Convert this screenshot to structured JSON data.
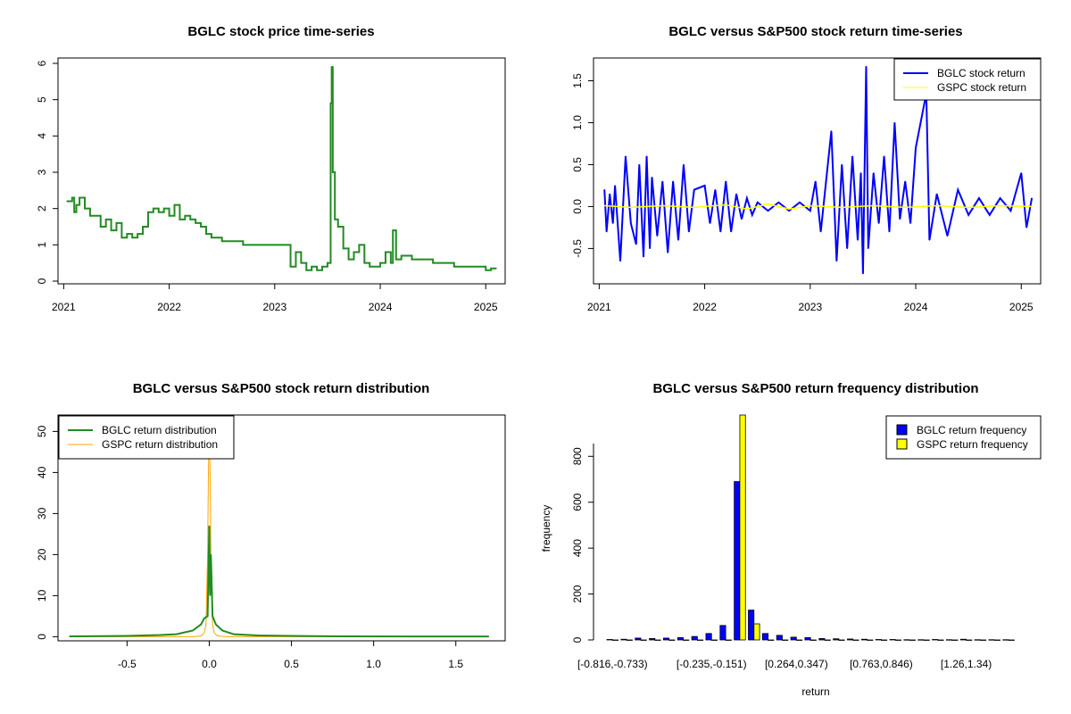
{
  "chart_data": [
    {
      "type": "line",
      "title": "BGLC stock price time-series",
      "xlabel": "",
      "ylabel": "",
      "xticks": [
        "2021",
        "2022",
        "2023",
        "2024",
        "2025"
      ],
      "xtick_values": [
        2021,
        2022,
        2023,
        2024,
        2025
      ],
      "xlim": [
        2020.98,
        2025.15
      ],
      "yticks": [
        0,
        1,
        2,
        3,
        4,
        5,
        6
      ],
      "ylim": [
        0,
        6
      ],
      "series": [
        {
          "name": "BGLC price",
          "color": "#228B22",
          "x": [
            2021.03,
            2021.08,
            2021.1,
            2021.12,
            2021.15,
            2021.2,
            2021.25,
            2021.3,
            2021.35,
            2021.4,
            2021.45,
            2021.5,
            2021.55,
            2021.6,
            2021.65,
            2021.7,
            2021.75,
            2021.8,
            2021.85,
            2021.9,
            2021.95,
            2022.0,
            2022.05,
            2022.1,
            2022.15,
            2022.2,
            2022.25,
            2022.3,
            2022.35,
            2022.4,
            2022.45,
            2022.5,
            2022.6,
            2022.7,
            2022.8,
            2022.9,
            2023.0,
            2023.1,
            2023.15,
            2023.2,
            2023.25,
            2023.3,
            2023.35,
            2023.4,
            2023.45,
            2023.5,
            2023.53,
            2023.54,
            2023.55,
            2023.57,
            2023.6,
            2023.65,
            2023.7,
            2023.75,
            2023.8,
            2023.85,
            2023.9,
            2024.0,
            2024.05,
            2024.1,
            2024.12,
            2024.15,
            2024.2,
            2024.3,
            2024.4,
            2024.5,
            2024.6,
            2024.7,
            2024.8,
            2024.9,
            2025.0,
            2025.05,
            2025.1
          ],
          "values": [
            2.2,
            2.3,
            1.9,
            2.1,
            2.3,
            2.0,
            1.8,
            1.8,
            1.5,
            1.7,
            1.4,
            1.6,
            1.2,
            1.3,
            1.2,
            1.3,
            1.5,
            1.9,
            2.0,
            1.9,
            2.0,
            1.8,
            2.1,
            1.7,
            1.8,
            1.7,
            1.6,
            1.5,
            1.3,
            1.2,
            1.2,
            1.1,
            1.1,
            1.0,
            1.0,
            1.0,
            1.0,
            1.0,
            0.4,
            0.8,
            0.5,
            0.3,
            0.4,
            0.3,
            0.4,
            0.5,
            4.9,
            5.9,
            3.0,
            1.7,
            1.5,
            0.9,
            0.6,
            0.8,
            1.0,
            0.5,
            0.4,
            0.5,
            0.8,
            0.5,
            1.4,
            0.6,
            0.7,
            0.6,
            0.6,
            0.5,
            0.5,
            0.4,
            0.4,
            0.4,
            0.3,
            0.35,
            0.35
          ]
        }
      ]
    },
    {
      "type": "line",
      "title": "BGLC versus S&P500 stock return time-series",
      "xlabel": "",
      "ylabel": "",
      "xticks": [
        "2021",
        "2022",
        "2023",
        "2024",
        "2025"
      ],
      "xtick_values": [
        2021,
        2022,
        2023,
        2024,
        2025
      ],
      "xlim": [
        2020.98,
        2025.15
      ],
      "yticks": [
        "-0.5",
        "0.0",
        "0.5",
        "1.0",
        "1.5"
      ],
      "ytick_values": [
        -0.5,
        0.0,
        0.5,
        1.0,
        1.5
      ],
      "ylim": [
        -0.9,
        1.75
      ],
      "legend": {
        "placement": "top-right",
        "entries": [
          "BGLC stock return",
          "GSPC stock return"
        ]
      },
      "series": [
        {
          "name": "BGLC stock return",
          "color": "#0000FF",
          "x": [
            2021.05,
            2021.07,
            2021.1,
            2021.13,
            2021.15,
            2021.2,
            2021.25,
            2021.3,
            2021.35,
            2021.38,
            2021.42,
            2021.45,
            2021.48,
            2021.5,
            2021.55,
            2021.6,
            2021.65,
            2021.7,
            2021.75,
            2021.8,
            2021.85,
            2021.9,
            2022.0,
            2022.05,
            2022.1,
            2022.15,
            2022.2,
            2022.25,
            2022.3,
            2022.35,
            2022.4,
            2022.45,
            2022.5,
            2022.6,
            2022.7,
            2022.8,
            2022.9,
            2023.0,
            2023.05,
            2023.1,
            2023.2,
            2023.25,
            2023.3,
            2023.35,
            2023.4,
            2023.45,
            2023.48,
            2023.5,
            2023.53,
            2023.55,
            2023.6,
            2023.65,
            2023.7,
            2023.75,
            2023.8,
            2023.85,
            2023.9,
            2023.95,
            2024.0,
            2024.1,
            2024.13,
            2024.2,
            2024.3,
            2024.4,
            2024.5,
            2024.6,
            2024.7,
            2024.8,
            2024.9,
            2025.0,
            2025.05,
            2025.1
          ],
          "values": [
            0.2,
            -0.3,
            0.15,
            -0.2,
            0.25,
            -0.65,
            0.6,
            -0.2,
            -0.45,
            0.5,
            -0.6,
            0.6,
            -0.5,
            0.35,
            -0.35,
            0.3,
            -0.55,
            0.3,
            -0.4,
            0.5,
            -0.3,
            0.2,
            0.25,
            -0.2,
            0.2,
            -0.3,
            0.3,
            -0.3,
            0.15,
            -0.15,
            0.1,
            -0.1,
            0.05,
            -0.05,
            0.05,
            -0.05,
            0.05,
            -0.05,
            0.3,
            -0.3,
            0.9,
            -0.65,
            0.5,
            -0.5,
            0.6,
            -0.4,
            0.4,
            -0.8,
            1.67,
            -0.5,
            0.4,
            -0.2,
            0.6,
            -0.3,
            1.0,
            -0.15,
            0.3,
            -0.2,
            0.7,
            1.35,
            -0.4,
            0.15,
            -0.35,
            0.2,
            -0.1,
            0.1,
            -0.1,
            0.1,
            -0.05,
            0.4,
            -0.25,
            0.1
          ]
        },
        {
          "name": "GSPC stock return",
          "color": "#FFFF00",
          "x": [
            2021.05,
            2021.3,
            2021.6,
            2021.9,
            2022.2,
            2022.4,
            2022.6,
            2022.8,
            2023.0,
            2023.3,
            2023.6,
            2023.9,
            2024.2,
            2024.5,
            2024.8,
            2025.1
          ],
          "values": [
            0.01,
            -0.01,
            0.01,
            -0.01,
            0.02,
            -0.03,
            0.03,
            -0.03,
            0.01,
            -0.01,
            0.01,
            -0.01,
            0.01,
            -0.01,
            0.01,
            0.0
          ]
        }
      ]
    },
    {
      "type": "line",
      "title": "BGLC versus S&P500 stock return distribution",
      "xlabel": "",
      "ylabel": "",
      "xticks": [
        "-0.5",
        "0.0",
        "0.5",
        "1.0",
        "1.5"
      ],
      "xtick_values": [
        -0.5,
        0.0,
        0.5,
        1.0,
        1.5
      ],
      "xlim": [
        -0.92,
        1.8
      ],
      "yticks": [
        "0",
        "10",
        "20",
        "30",
        "40",
        "50"
      ],
      "ytick_values": [
        0,
        10,
        20,
        30,
        40,
        50
      ],
      "ylim": [
        -1,
        54
      ],
      "legend": {
        "placement": "top-left",
        "entries": [
          "BGLC return distribution",
          "GSPC return distribution"
        ]
      },
      "series": [
        {
          "name": "BGLC return distribution",
          "color": "#228B22",
          "x": [
            -0.85,
            -0.5,
            -0.3,
            -0.2,
            -0.1,
            -0.05,
            -0.03,
            -0.01,
            0.0,
            0.005,
            0.01,
            0.02,
            0.04,
            0.08,
            0.15,
            0.3,
            0.5,
            0.8,
            1.2,
            1.7
          ],
          "values": [
            0.1,
            0.2,
            0.4,
            0.6,
            1.5,
            3.0,
            4.5,
            5.0,
            27.0,
            10.0,
            20.0,
            5.0,
            3.0,
            1.5,
            0.6,
            0.3,
            0.2,
            0.1,
            0.05,
            0.05
          ]
        },
        {
          "name": "GSPC return distribution",
          "color": "#FFA500",
          "x": [
            -0.85,
            -0.1,
            -0.05,
            -0.03,
            -0.02,
            -0.01,
            -0.005,
            0.0,
            0.005,
            0.01,
            0.02,
            0.03,
            0.05,
            0.1,
            1.7
          ],
          "values": [
            0.0,
            0.0,
            0.2,
            1.0,
            3.0,
            20.0,
            40.0,
            53.0,
            40.0,
            20.0,
            3.0,
            1.0,
            0.2,
            0.0,
            0.0
          ]
        }
      ]
    },
    {
      "type": "bar",
      "title": "BGLC versus S&P500 return frequency distribution",
      "xlabel": "return",
      "ylabel": "frequency",
      "xtick_labels": [
        "[-0.816,-0.733)",
        "[-0.235,-0.151)",
        "[0.264,0.347)",
        "[0.763,0.846)",
        "[1.26,1.34)"
      ],
      "xtick_bins": [
        0,
        7,
        13,
        19,
        25
      ],
      "yticks": [
        "0",
        "200",
        "400",
        "600",
        "800"
      ],
      "ytick_values": [
        0,
        200,
        400,
        600,
        800
      ],
      "ylim": [
        0,
        980
      ],
      "legend": {
        "placement": "top-right",
        "entries": [
          "BGLC return frequency",
          "GSPC return frequency"
        ]
      },
      "series": [
        {
          "name": "BGLC return frequency",
          "color": "#0000FF",
          "values": [
            2,
            3,
            8,
            6,
            8,
            10,
            15,
            28,
            63,
            690,
            130,
            28,
            20,
            12,
            10,
            6,
            5,
            4,
            3,
            2,
            2,
            1,
            1,
            2,
            1,
            3,
            1,
            1,
            1
          ]
        },
        {
          "name": "GSPC return frequency",
          "color": "#FFFF00",
          "values": [
            0,
            0,
            0,
            0,
            0,
            0,
            0,
            0,
            0,
            980,
            70,
            0,
            0,
            0,
            0,
            0,
            0,
            0,
            0,
            0,
            0,
            0,
            0,
            0,
            0,
            0,
            0,
            0,
            0
          ]
        }
      ]
    }
  ]
}
